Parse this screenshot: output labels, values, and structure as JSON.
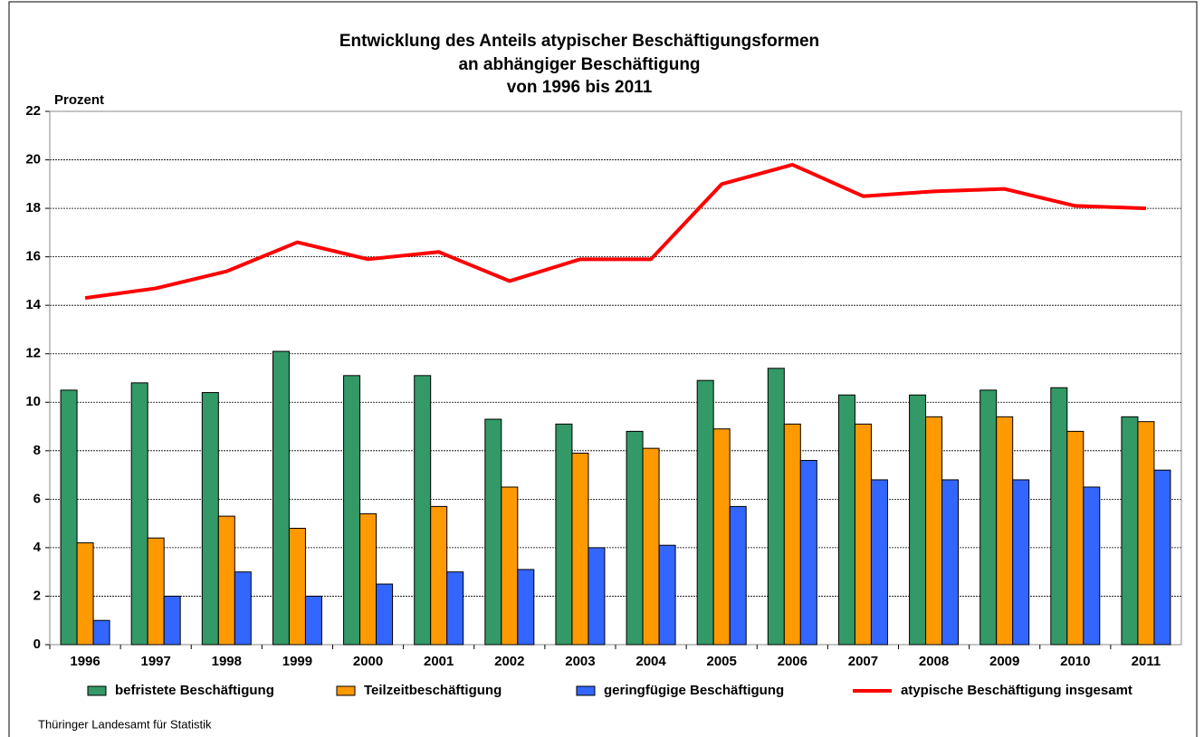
{
  "chart_data": {
    "type": "bar_line",
    "title": [
      "Entwicklung des Anteils atypischer Beschäftigungsformen",
      "an abhängiger Beschäftigung",
      "von 1996 bis 2011"
    ],
    "y_label": "Prozent",
    "source": "Thüringer Landesamt für Statistik",
    "categories": [
      "1996",
      "1997",
      "1998",
      "1999",
      "2000",
      "2001",
      "2002",
      "2003",
      "2004",
      "2005",
      "2006",
      "2007",
      "2008",
      "2009",
      "2010",
      "2011"
    ],
    "series": [
      {
        "name": "befristete Beschäftigung",
        "type": "bar",
        "color": "#339966",
        "values": [
          10.5,
          10.8,
          10.4,
          12.1,
          11.1,
          11.1,
          9.3,
          9.1,
          8.8,
          10.9,
          11.4,
          10.3,
          10.3,
          10.5,
          10.6,
          9.4
        ]
      },
      {
        "name": "Teilzeitbeschäftigung",
        "type": "bar",
        "color": "#ff9900",
        "values": [
          4.2,
          4.4,
          5.3,
          4.8,
          5.4,
          5.7,
          6.5,
          7.9,
          8.1,
          8.9,
          9.1,
          9.1,
          9.4,
          9.4,
          8.8,
          9.2
        ]
      },
      {
        "name": "geringfügige Beschäftigung",
        "type": "bar",
        "color": "#3366ff",
        "values": [
          1.0,
          2.0,
          3.0,
          2.0,
          2.5,
          3.0,
          3.1,
          4.0,
          4.1,
          5.7,
          7.6,
          6.8,
          6.8,
          6.8,
          6.5,
          7.2
        ]
      },
      {
        "name": "atypische Beschäftigung insgesamt",
        "type": "line",
        "color": "#ff0000",
        "values": [
          14.3,
          14.7,
          15.4,
          16.6,
          15.9,
          16.2,
          15.0,
          15.9,
          15.9,
          19.0,
          19.8,
          18.5,
          18.7,
          18.8,
          18.1,
          18.0
        ]
      }
    ],
    "ylim": [
      0,
      22
    ],
    "yticks": [
      0,
      2,
      4,
      6,
      8,
      10,
      12,
      14,
      16,
      18,
      20,
      22
    ],
    "grid": true,
    "legend": "bottom"
  }
}
